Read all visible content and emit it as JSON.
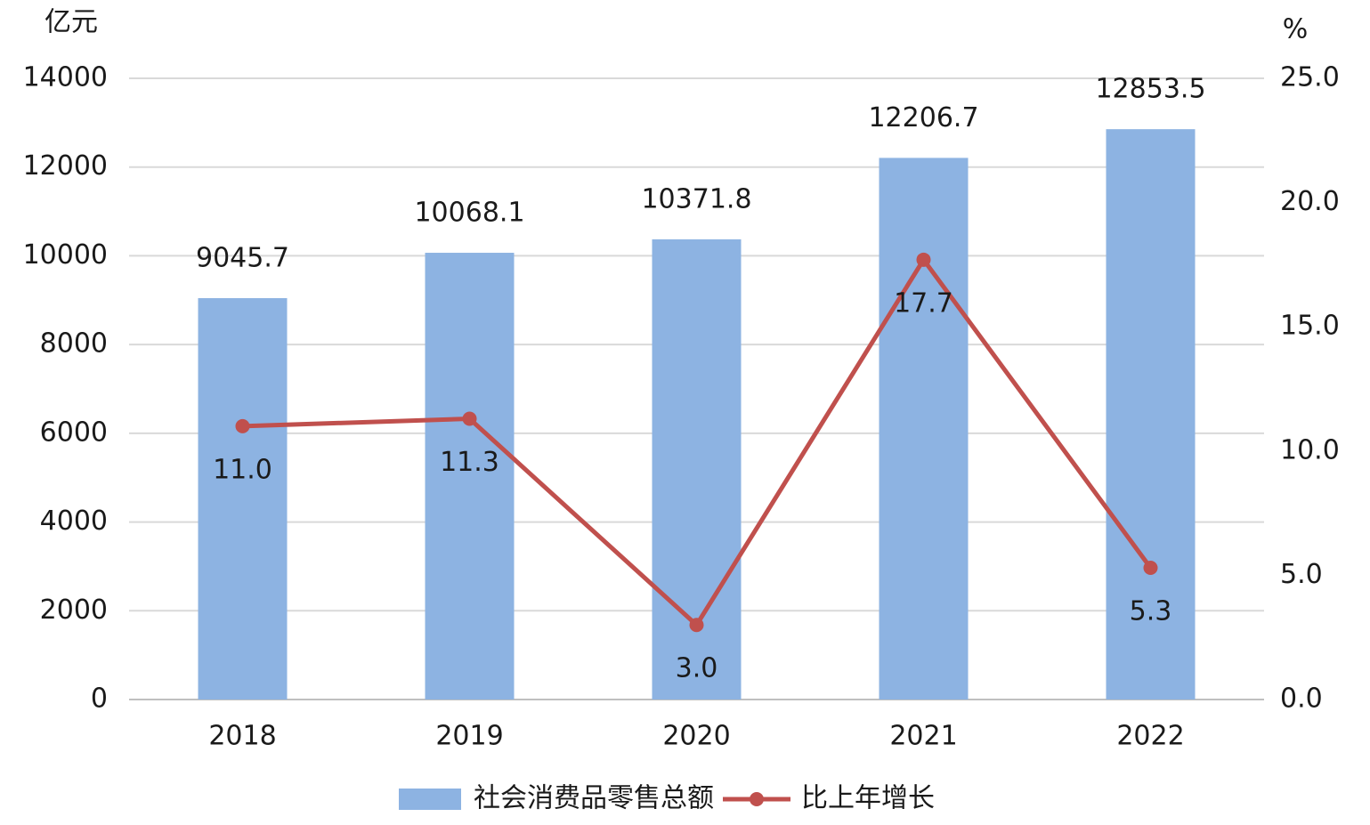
{
  "chart_data": {
    "type": "bar",
    "y_label": "亿元",
    "y2_label": "%",
    "categories": [
      "2018",
      "2019",
      "2020",
      "2021",
      "2022"
    ],
    "series": [
      {
        "name": "社会消费品零售总额",
        "type": "bar",
        "color": "#8db3e2",
        "values": [
          9045.7,
          10068.1,
          10371.8,
          12206.7,
          12853.5
        ]
      },
      {
        "name": "比上年增长",
        "type": "line",
        "axis": "y2",
        "color": "#c0504d",
        "values": [
          11.0,
          11.3,
          3.0,
          17.7,
          5.3
        ],
        "value_labels": [
          "11.0",
          "11.3",
          "3.0",
          "17.7",
          "5.3"
        ]
      }
    ],
    "ylim": [
      0,
      14000
    ],
    "yticks": [
      0,
      2000,
      4000,
      6000,
      8000,
      10000,
      12000,
      14000
    ],
    "y2lim": [
      0,
      25
    ],
    "y2ticks": [
      {
        "value": 0,
        "label": "0.0"
      },
      {
        "value": 5,
        "label": "5.0"
      },
      {
        "value": 10,
        "label": "10.0"
      },
      {
        "value": 15,
        "label": "15.0"
      },
      {
        "value": 20,
        "label": "20.0"
      },
      {
        "value": 25,
        "label": "25.0"
      }
    ],
    "grid": true,
    "legend": "bottom"
  }
}
